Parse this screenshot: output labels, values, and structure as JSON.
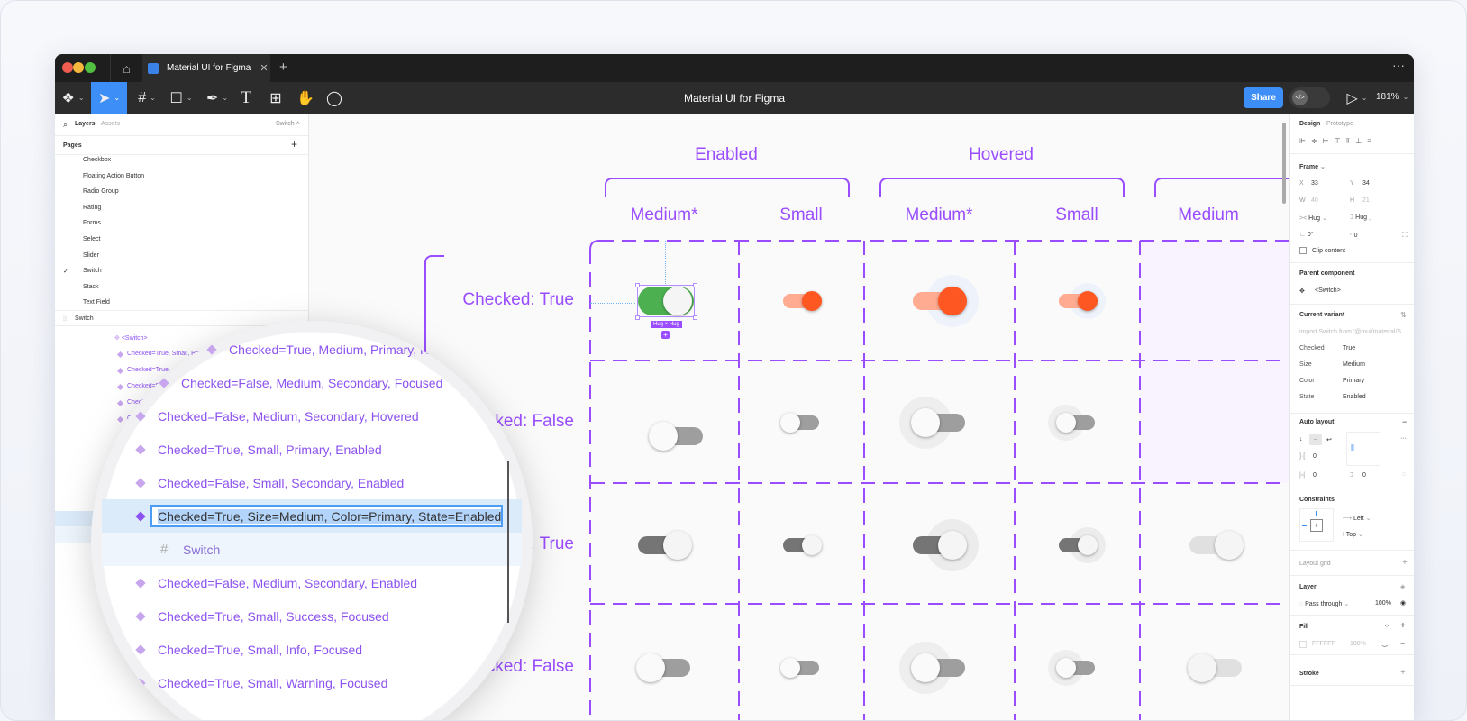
{
  "tab": {
    "title": "Material UI for Figma",
    "close_icon": "close-icon",
    "new_tab_icon": "plus-icon",
    "more_icon": "ellipsis-icon"
  },
  "toolbar": {
    "tools": [
      "figma-menu-icon",
      "move-tool-icon",
      "frame-tool-icon",
      "rectangle-tool-icon",
      "pen-tool-icon",
      "text-tool-icon",
      "resources-icon",
      "hand-tool-icon",
      "comment-tool-icon"
    ],
    "active_tool": "move-tool-icon",
    "file_title": "Material UI for Figma",
    "share_label": "Share",
    "dev_mode_icon": "code-icon",
    "present_icon": "play-icon",
    "zoom": "181%",
    "accent": "#3d8ef7"
  },
  "left_panel": {
    "tabs": {
      "layers": "Layers",
      "assets": "Assets"
    },
    "page_selector": "Switch",
    "pages_label": "Pages",
    "pages": [
      "Checkbox",
      "Floating Action Button",
      "Radio Group",
      "Rating",
      "Forms",
      "Select",
      "Slider",
      "Switch",
      "Stack",
      "Text Field"
    ],
    "current_page": "Switch",
    "frame_label": "Switch",
    "component_label": "<Switch>",
    "small_layers": [
      "Checked=True, Small, Primary, Hovered",
      "Checked=True, Small, Secondary, Focused",
      "Checked=False, Medium, Secondary, Focused",
      "Checked=False, Small, Primary, Hovered",
      "Checked=True, Medium, Primary, Enabled"
    ]
  },
  "magnifier": {
    "layers": [
      {
        "label": "Checked=True, Medium, Primary, Hovered",
        "type": "variant"
      },
      {
        "label": "Checked=False, Medium, Secondary, Focused",
        "type": "variant"
      },
      {
        "label": "Checked=False, Medium, Secondary, Hovered",
        "type": "variant"
      },
      {
        "label": "Checked=True, Small, Primary, Enabled",
        "type": "variant"
      },
      {
        "label": "Checked=False, Small, Secondary, Enabled",
        "type": "variant"
      },
      {
        "label": "Checked=True, Size=Medium, Color=Primary, State=Enabled",
        "type": "editing"
      },
      {
        "label": "Switch",
        "type": "frame"
      },
      {
        "label": "Checked=False, Medium, Secondary, Enabled",
        "type": "variant"
      },
      {
        "label": "Checked=True, Small, Success, Focused",
        "type": "variant"
      },
      {
        "label": "Checked=True, Small, Info, Focused",
        "type": "variant"
      },
      {
        "label": "Checked=True, Small, Warning, Focused",
        "type": "variant"
      }
    ]
  },
  "canvas": {
    "groups": [
      "Enabled",
      "Hovered"
    ],
    "columns": [
      "Medium*",
      "Small",
      "Medium*",
      "Small",
      "Medium"
    ],
    "rows": [
      "Checked: True",
      "Checked: False",
      "Checked: True",
      "Checked: False"
    ],
    "selection_label": "Hug × Hug",
    "purple": "#9a4dff",
    "cells": [
      [
        {
          "checked": true,
          "size": "medium",
          "color": "green",
          "halo": false,
          "selected": true
        },
        {
          "checked": true,
          "size": "small",
          "color": "orange",
          "halo": false
        },
        {
          "checked": true,
          "size": "medium",
          "color": "orange",
          "halo": true
        },
        {
          "checked": true,
          "size": "small",
          "color": "orange",
          "halo": true
        },
        null
      ],
      [
        {
          "checked": false,
          "size": "medium",
          "color": "gray",
          "halo": false
        },
        {
          "checked": false,
          "size": "small",
          "color": "gray",
          "halo": false
        },
        {
          "checked": false,
          "size": "medium",
          "color": "gray",
          "halo": true
        },
        {
          "checked": false,
          "size": "small",
          "color": "gray",
          "halo": true
        },
        null
      ],
      [
        {
          "checked": true,
          "size": "medium",
          "color": "dark",
          "halo": false
        },
        {
          "checked": true,
          "size": "small",
          "color": "dark",
          "halo": false
        },
        {
          "checked": true,
          "size": "medium",
          "color": "dark",
          "halo": true
        },
        {
          "checked": true,
          "size": "small",
          "color": "dark",
          "halo": true
        },
        {
          "checked": true,
          "size": "medium",
          "color": "light",
          "halo": false
        }
      ],
      [
        {
          "checked": false,
          "size": "medium",
          "color": "gray",
          "halo": false
        },
        {
          "checked": false,
          "size": "small",
          "color": "gray",
          "halo": false
        },
        {
          "checked": false,
          "size": "medium",
          "color": "gray",
          "halo": true
        },
        {
          "checked": false,
          "size": "small",
          "color": "gray",
          "halo": true
        },
        {
          "checked": false,
          "size": "medium",
          "color": "light",
          "halo": false
        }
      ]
    ]
  },
  "right_panel": {
    "tabs": {
      "design": "Design",
      "prototype": "Prototype"
    },
    "frame": {
      "label": "Frame",
      "x_label": "X",
      "x": "33",
      "y_label": "Y",
      "y": "34",
      "w_label": "W",
      "w": "40",
      "h_label": "H",
      "h": "21",
      "width_mode": "Hug",
      "height_mode": "Hug",
      "rotation": "0°",
      "radius": "0",
      "clip_content": "Clip content",
      "clip_checked": false
    },
    "parent_component": {
      "label": "Parent component",
      "name": "<Switch>"
    },
    "current_variant": {
      "label": "Current variant",
      "import": "import Switch from '@mui/material/S...",
      "props": [
        {
          "k": "Checked",
          "v": "True"
        },
        {
          "k": "Size",
          "v": "Medium"
        },
        {
          "k": "Color",
          "v": "Primary"
        },
        {
          "k": "State",
          "v": "Enabled"
        }
      ]
    },
    "auto_layout": {
      "label": "Auto layout",
      "spacing": "0",
      "padding_h": "0",
      "padding_v": "0",
      "padding_other": "0"
    },
    "constraints": {
      "label": "Constraints",
      "horizontal": "Left",
      "vertical": "Top"
    },
    "layout_grid": "Layout grid",
    "layer": {
      "label": "Layer",
      "blend": "Pass through",
      "opacity": "100%"
    },
    "fill": {
      "label": "Fill",
      "hex": "FFFFFF",
      "opacity": "100%"
    },
    "stroke": "Stroke"
  }
}
